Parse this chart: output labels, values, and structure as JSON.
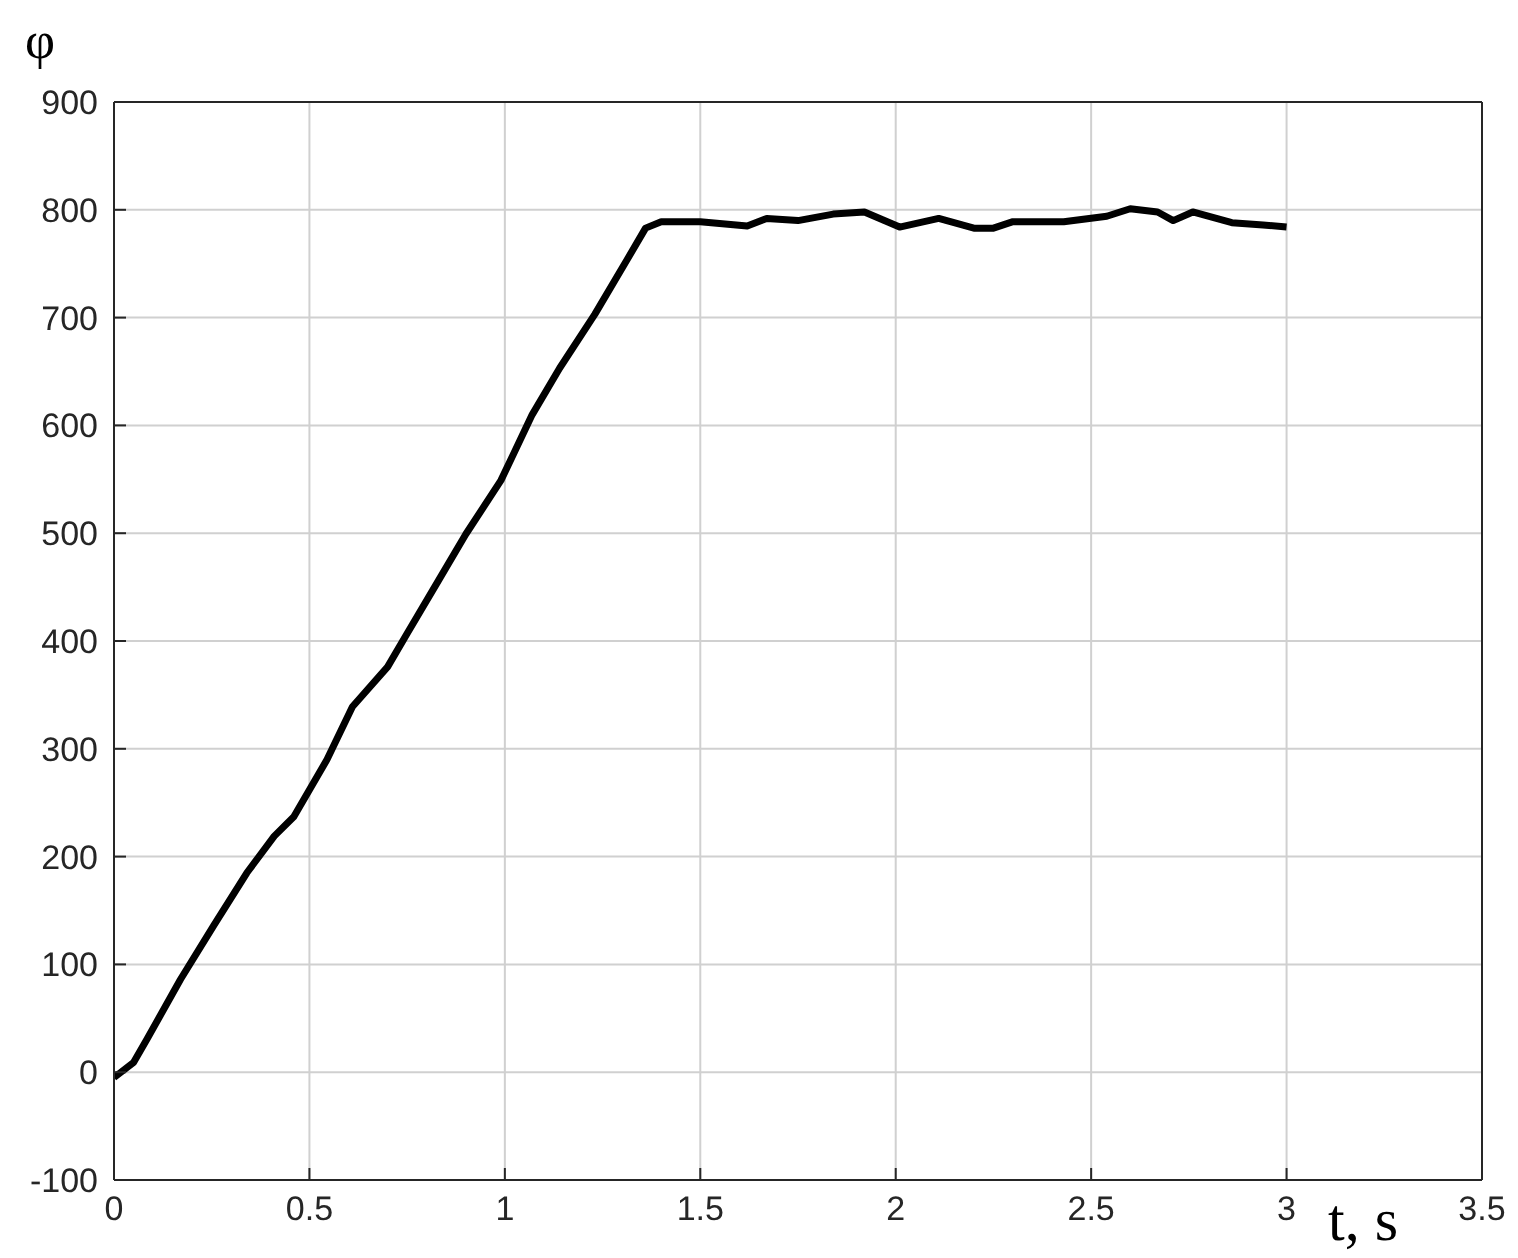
{
  "chart_data": {
    "type": "line",
    "xlabel": "t, s",
    "ylabel": "φ",
    "x": [
      0,
      0.05,
      0.085,
      0.17,
      0.255,
      0.34,
      0.41,
      0.46,
      0.545,
      0.61,
      0.7,
      0.75,
      0.83,
      0.9,
      0.99,
      1.07,
      1.14,
      1.23,
      1.31,
      1.36,
      1.4,
      1.5,
      1.62,
      1.67,
      1.75,
      1.84,
      1.92,
      2.01,
      2.11,
      2.2,
      2.25,
      2.3,
      2.43,
      2.54,
      2.6,
      2.67,
      2.71,
      2.76,
      2.86,
      2.94,
      3.0
    ],
    "series": [
      {
        "color": "#000000",
        "values": [
          -5,
          9,
          31,
          86,
          136,
          185,
          219,
          237,
          290,
          339,
          376,
          407,
          456,
          499,
          549,
          610,
          653,
          703,
          752,
          783,
          789,
          789,
          785,
          792,
          790,
          796,
          798,
          784,
          792,
          783,
          783,
          789,
          789,
          794,
          801,
          798,
          790,
          798,
          788,
          786,
          784
        ]
      }
    ],
    "xlim": [
      0,
      3.5
    ],
    "xticks": [
      0,
      0.5,
      1,
      1.5,
      2,
      2.5,
      3,
      3.5
    ],
    "ylim": [
      -100,
      900
    ],
    "yticks": [
      -100,
      0,
      100,
      200,
      300,
      400,
      500,
      600,
      700,
      800,
      900
    ],
    "grid": true,
    "legend": false,
    "marker": "none",
    "line_style": "solid"
  }
}
